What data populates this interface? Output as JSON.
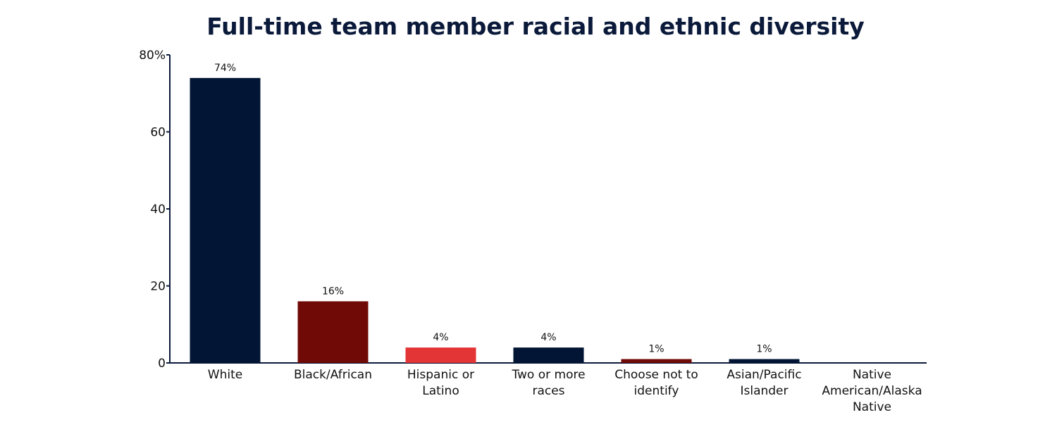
{
  "chart_data": {
    "type": "bar",
    "title": "Full-time team member racial and ethnic diversity",
    "categories": [
      [
        "White"
      ],
      [
        "Black/African"
      ],
      [
        "Hispanic or",
        "Latino"
      ],
      [
        "Two or more",
        "races"
      ],
      [
        "Choose not to",
        "identify"
      ],
      [
        "Asian/Pacific",
        "Islander"
      ],
      [
        "Native",
        "American/Alaska",
        "Native"
      ]
    ],
    "values": [
      74,
      16,
      4,
      4,
      1,
      1,
      0
    ],
    "data_labels": [
      "74%",
      "16%",
      "4%",
      "4%",
      "1%",
      "1%",
      ""
    ],
    "colors": [
      "#021535",
      "#700a06",
      "#e33535",
      "#021535",
      "#700a06",
      "#021535",
      "#021535"
    ],
    "ylim": [
      0,
      80
    ],
    "yticks": [
      0,
      20,
      40,
      60,
      80
    ],
    "ytick_labels": [
      "0",
      "20",
      "40",
      "60",
      "80%"
    ],
    "xlabel": "",
    "ylabel": "",
    "grid": false,
    "legend": "none"
  }
}
